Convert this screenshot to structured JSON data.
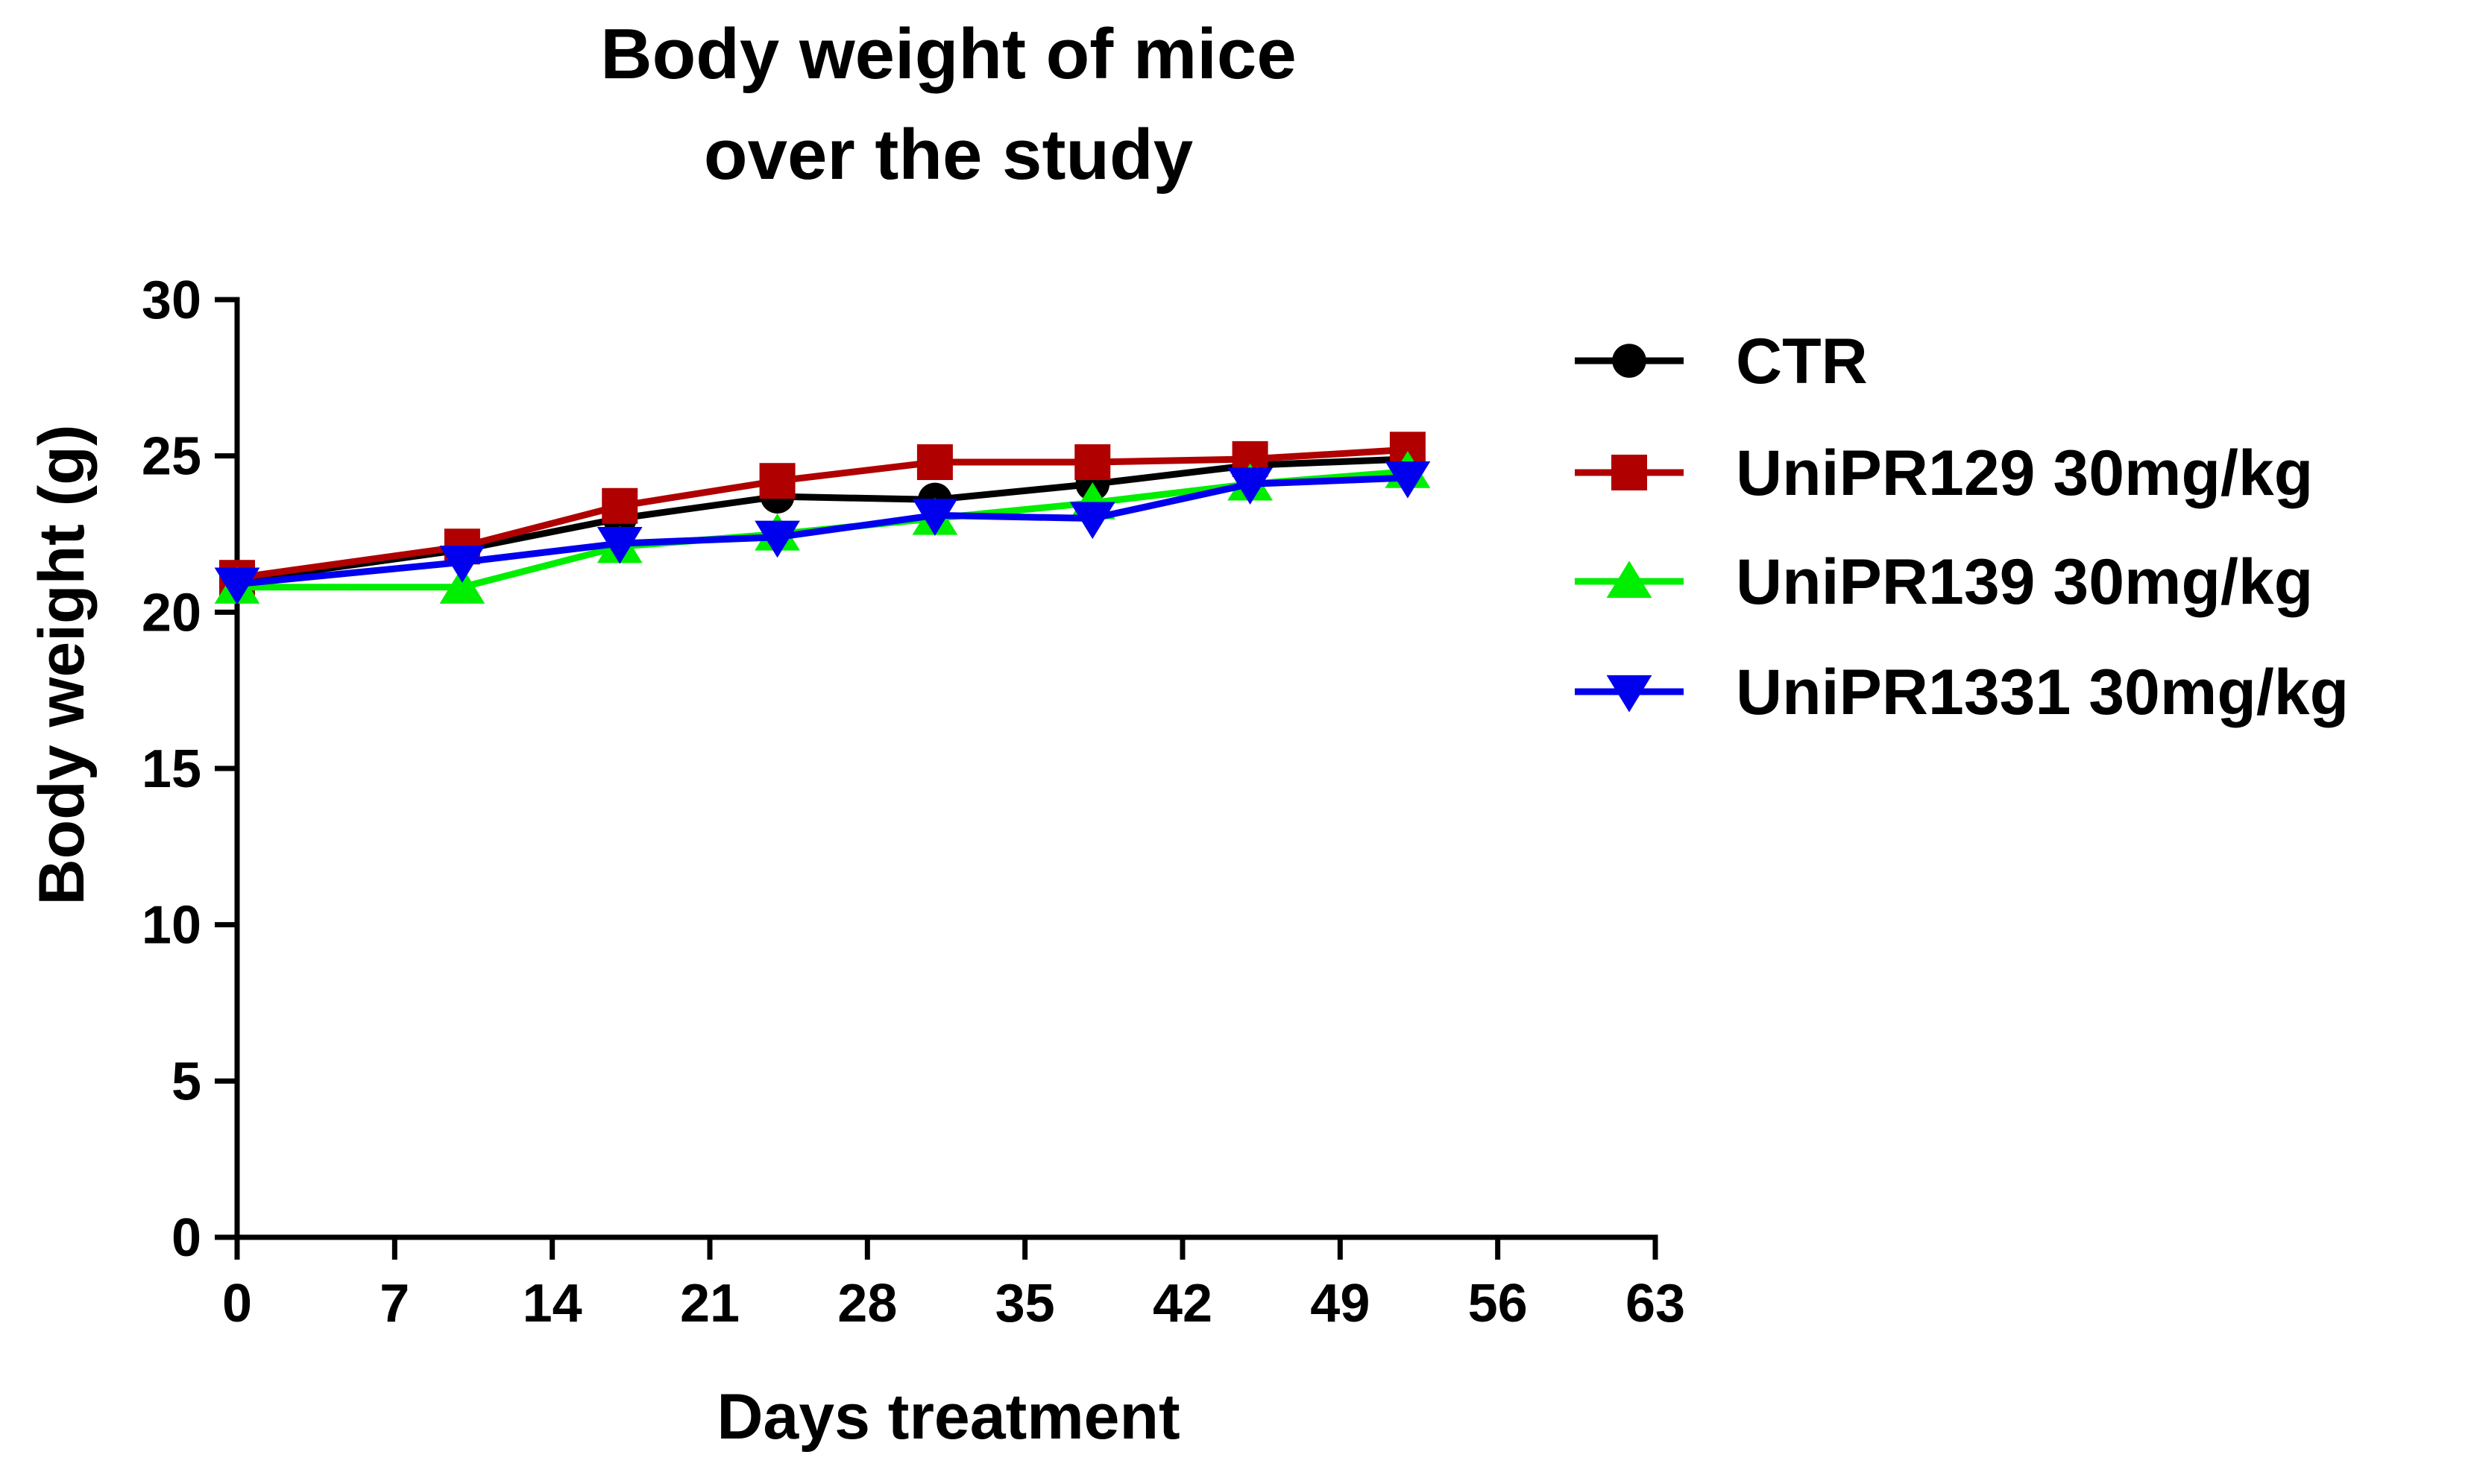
{
  "chart_data": {
    "type": "line",
    "title_lines": [
      "Body weight of mice",
      "over the study"
    ],
    "xlabel": "Days treatment",
    "ylabel": "Body weight (g)",
    "xlim": [
      0,
      63
    ],
    "ylim": [
      0,
      30
    ],
    "x_ticks": [
      0,
      7,
      14,
      21,
      28,
      35,
      42,
      49,
      56,
      63
    ],
    "y_ticks": [
      0,
      5,
      10,
      15,
      20,
      25,
      30
    ],
    "x_tick_labels": [
      "0",
      "7",
      "14",
      "21",
      "28",
      "35",
      "42",
      "49",
      "56",
      "63"
    ],
    "y_tick_labels": [
      "0",
      "5",
      "10",
      "15",
      "20",
      "25",
      "30"
    ],
    "grid": false,
    "legend_position": "right",
    "x": [
      0,
      10,
      17,
      24,
      31,
      38,
      45,
      52
    ],
    "series": [
      {
        "name": "CTR",
        "marker": "circle",
        "color": "#000000",
        "values": [
          21.0,
          22.0,
          23.0,
          23.7,
          23.6,
          24.1,
          24.7,
          24.9
        ]
      },
      {
        "name": "UniPR129 30mg/kg",
        "marker": "square",
        "color": "#b00000",
        "values": [
          21.1,
          22.1,
          23.4,
          24.2,
          24.8,
          24.8,
          24.9,
          25.2
        ]
      },
      {
        "name": "UniPR139 30mg/kg",
        "marker": "triangle-up",
        "color": "#00ee00",
        "values": [
          20.8,
          20.8,
          22.1,
          22.5,
          23.0,
          23.5,
          24.1,
          24.5
        ]
      },
      {
        "name": "UniPR1331 30mg/kg",
        "marker": "triangle-down",
        "color": "#0000ee",
        "values": [
          20.9,
          21.6,
          22.2,
          22.4,
          23.1,
          23.0,
          24.1,
          24.3
        ]
      }
    ]
  }
}
